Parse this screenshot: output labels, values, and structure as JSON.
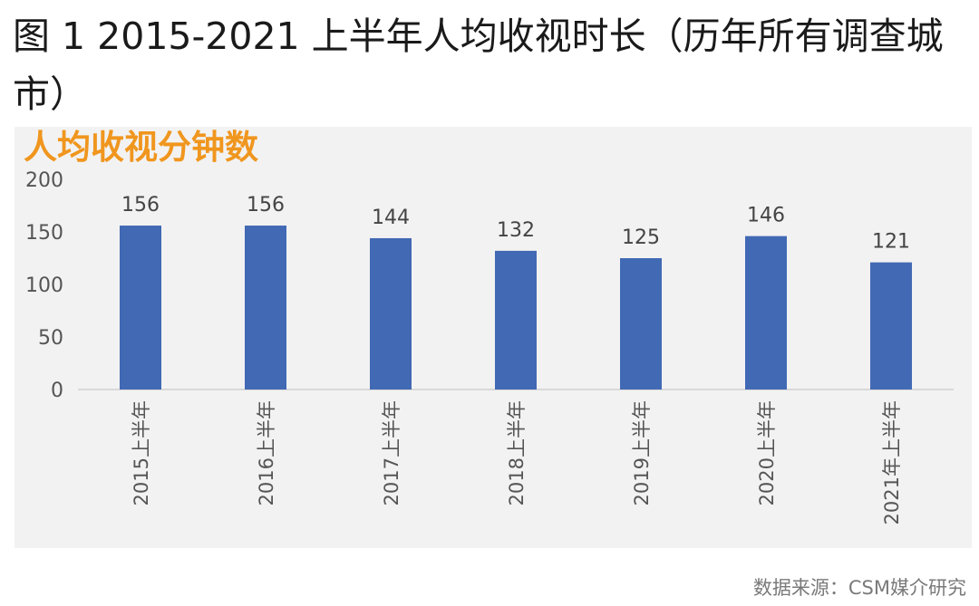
{
  "figure_title": "图 1  2015-2021 上半年人均收视时长（历年所有调查城市）",
  "source": "数据来源：CSM媒介研究",
  "colors": {
    "bar": "#4169b4",
    "title_accent": "#f0961e",
    "panel_bg": "#f2f2f2",
    "axis_text": "#555555",
    "label_text": "#444444"
  },
  "chart_data": {
    "type": "bar",
    "title": "人均收视分钟数",
    "xlabel": "",
    "ylabel": "",
    "categories": [
      "2015上半年",
      "2016上半年",
      "2017上半年",
      "2018上半年",
      "2019上半年",
      "2020上半年",
      "2021年上半年"
    ],
    "values": [
      156,
      156,
      144,
      132,
      125,
      146,
      121
    ],
    "ylim": [
      0,
      200
    ],
    "yticks": [
      0,
      50,
      100,
      150,
      200
    ],
    "grid": false,
    "legend": "none",
    "data_labels": true
  }
}
